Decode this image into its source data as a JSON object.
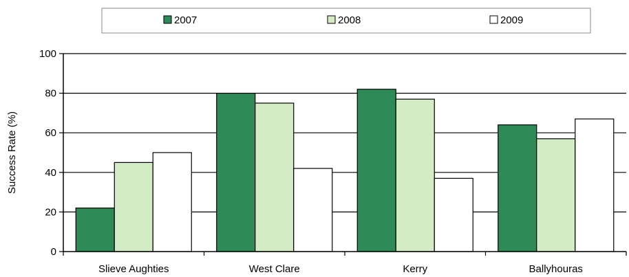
{
  "chart_data": {
    "type": "bar",
    "title": "",
    "xlabel": "",
    "ylabel": "Success Rate (%)",
    "ylim": [
      0,
      100
    ],
    "yticks": [
      0,
      20,
      40,
      60,
      80,
      100
    ],
    "grid": true,
    "legend_position": "top",
    "categories": [
      "Slieve Aughties",
      "West Clare",
      "Kerry",
      "Ballyhouras"
    ],
    "series": [
      {
        "name": "2007",
        "values": [
          22,
          80,
          82,
          64
        ],
        "color": "#2e8b57"
      },
      {
        "name": "2008",
        "values": [
          45,
          75,
          77,
          57
        ],
        "color": "#d4ecc5"
      },
      {
        "name": "2009",
        "values": [
          50,
          42,
          37,
          67
        ],
        "color": "#ffffff"
      }
    ]
  }
}
